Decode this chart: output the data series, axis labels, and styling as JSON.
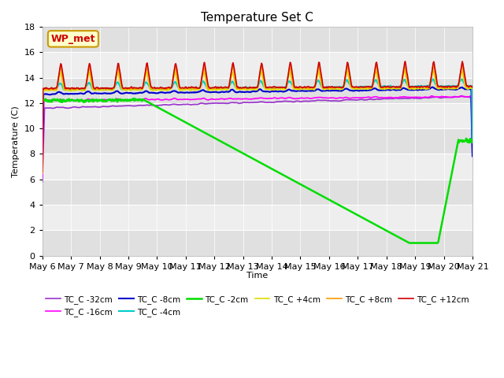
{
  "title": "Temperature Set C",
  "xlabel": "Time",
  "ylabel": "Temperature (C)",
  "ylim": [
    0,
    18
  ],
  "background_color": "#ffffff",
  "band_colors": [
    "#e8e8e8",
    "#f5f5f5"
  ],
  "wp_met_label": "WP_met",
  "wp_met_bg": "#ffffcc",
  "wp_met_border": "#cc9900",
  "wp_met_text": "#cc0000",
  "series": [
    {
      "label": "TC_C -32cm",
      "color": "#9933cc",
      "lw": 1.2
    },
    {
      "label": "TC_C -16cm",
      "color": "#ff00ff",
      "lw": 1.2
    },
    {
      "label": "TC_C -8cm",
      "color": "#0000cc",
      "lw": 1.5
    },
    {
      "label": "TC_C -4cm",
      "color": "#00cccc",
      "lw": 1.5
    },
    {
      "label": "TC_C -2cm",
      "color": "#00dd00",
      "lw": 1.8
    },
    {
      "label": "TC_C +4cm",
      "color": "#dddd00",
      "lw": 1.2
    },
    {
      "label": "TC_C +8cm",
      "color": "#ff9900",
      "lw": 1.2
    },
    {
      "label": "TC_C +12cm",
      "color": "#cc0000",
      "lw": 1.2
    }
  ],
  "tick_labels": [
    "May 6",
    "May 7",
    "May 8",
    "May 9",
    "May 10",
    "May 11",
    "May 12",
    "May 13",
    "May 14",
    "May 15",
    "May 16",
    "May 17",
    "May 18",
    "May 19",
    "May 20",
    "May 21"
  ]
}
